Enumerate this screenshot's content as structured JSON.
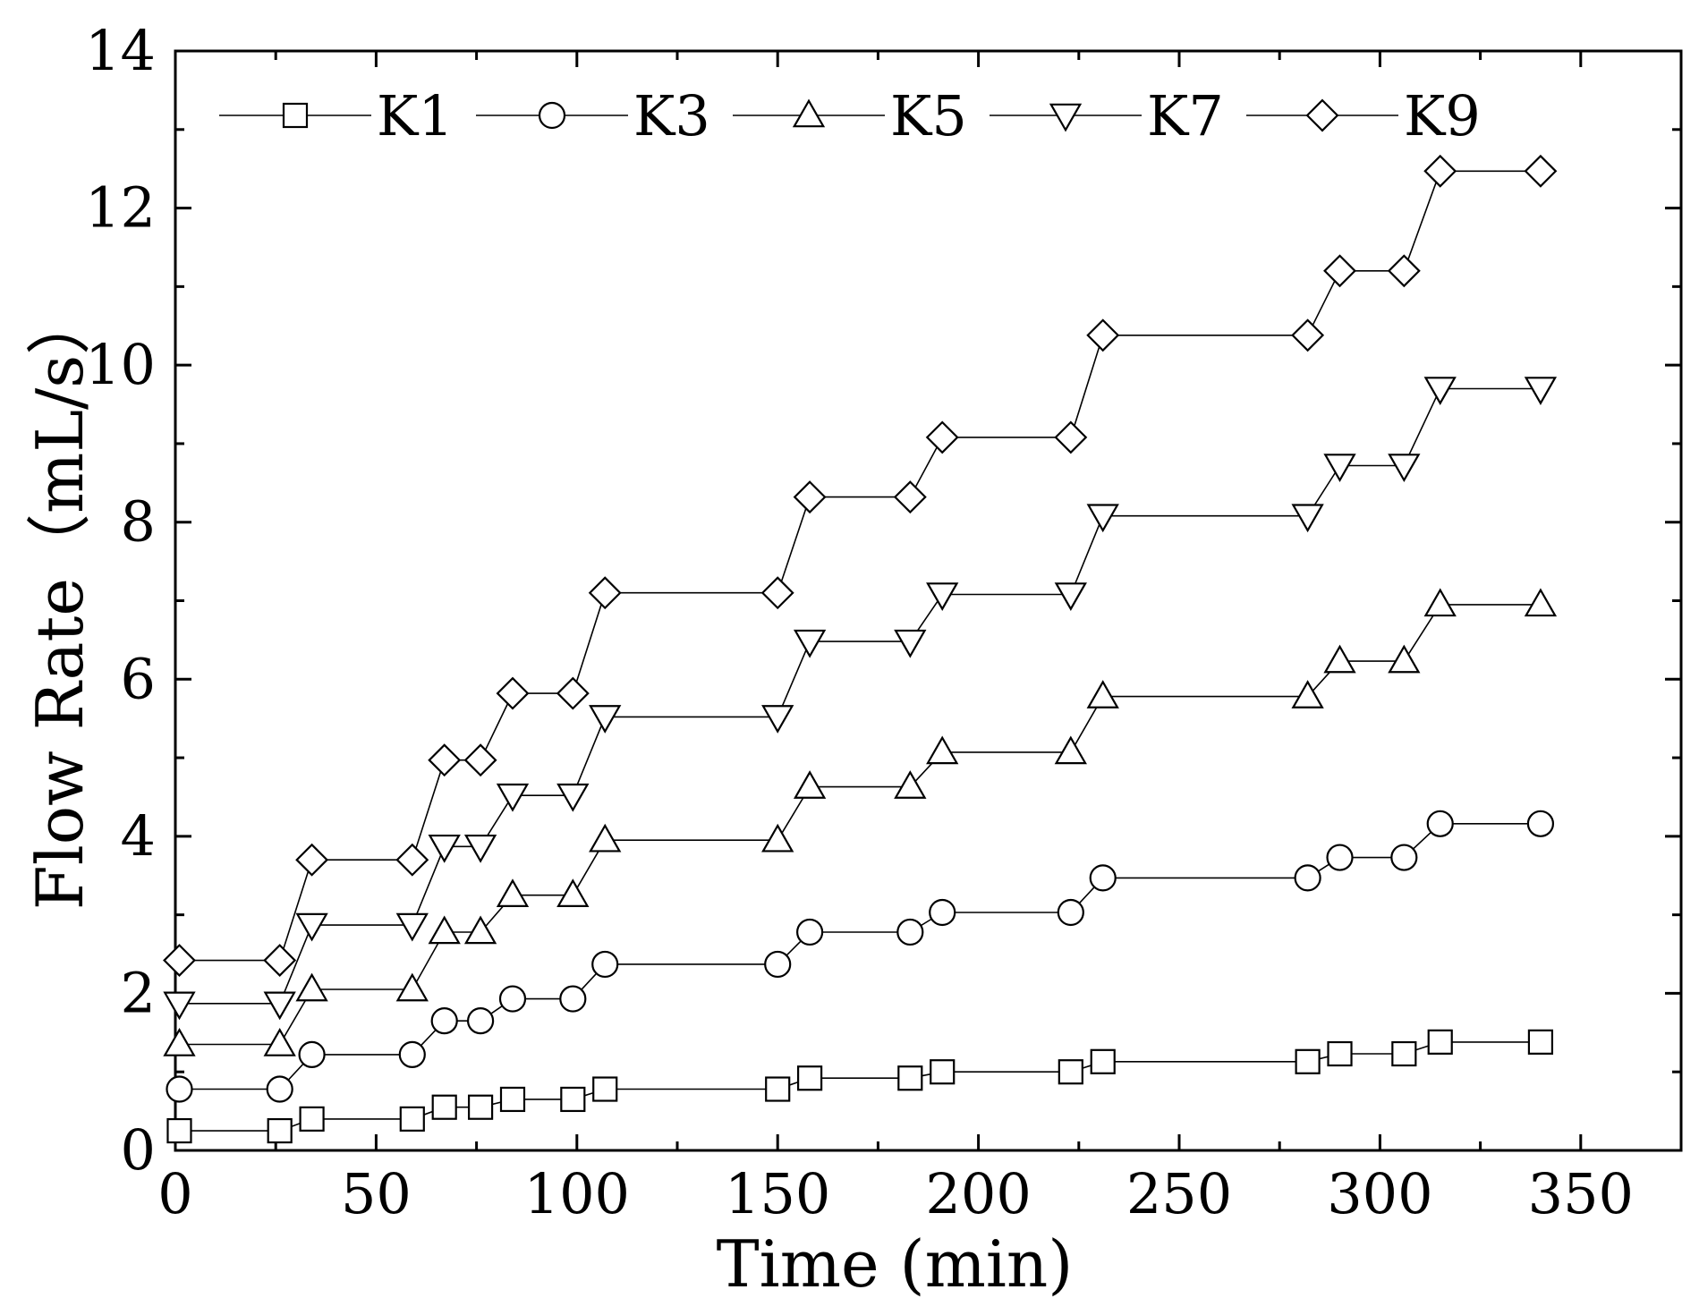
{
  "chart_data": {
    "type": "line",
    "xlabel": "Time (min)",
    "ylabel": "Flow Rate（mL/s）",
    "xlim": [
      0,
      375
    ],
    "ylim": [
      0,
      14
    ],
    "xticks": [
      0,
      50,
      100,
      150,
      200,
      250,
      300,
      350
    ],
    "yticks": [
      0,
      2,
      4,
      6,
      8,
      10,
      12,
      14
    ],
    "xtick_labels": [
      "0",
      "50",
      "100",
      "150",
      "200",
      "250",
      "300",
      "350"
    ],
    "ytick_labels": [
      "0",
      "2",
      "4",
      "6",
      "8",
      "10",
      "12",
      "14"
    ],
    "grid": false,
    "legend_position": "top",
    "x": [
      1,
      26,
      34,
      59,
      67,
      76,
      84,
      99,
      107,
      150,
      158,
      183,
      191,
      223,
      231,
      282,
      290,
      306,
      315,
      340
    ],
    "series": [
      {
        "name": "K1",
        "marker": "square",
        "values": [
          0.25,
          0.25,
          0.4,
          0.4,
          0.55,
          0.55,
          0.65,
          0.65,
          0.78,
          0.78,
          0.92,
          0.92,
          1.0,
          1.0,
          1.13,
          1.13,
          1.23,
          1.23,
          1.38,
          1.38
        ]
      },
      {
        "name": "K3",
        "marker": "circle",
        "values": [
          0.78,
          0.78,
          1.22,
          1.22,
          1.65,
          1.65,
          1.93,
          1.93,
          2.37,
          2.37,
          2.78,
          2.78,
          3.03,
          3.03,
          3.47,
          3.47,
          3.73,
          3.73,
          4.16,
          4.16
        ]
      },
      {
        "name": "K5",
        "marker": "triangle-up",
        "values": [
          1.35,
          1.35,
          2.05,
          2.05,
          2.78,
          2.78,
          3.25,
          3.25,
          3.95,
          3.95,
          4.63,
          4.63,
          5.07,
          5.07,
          5.78,
          5.78,
          6.23,
          6.23,
          6.95,
          6.95
        ]
      },
      {
        "name": "K7",
        "marker": "triangle-down",
        "values": [
          1.87,
          1.87,
          2.87,
          2.87,
          3.87,
          3.87,
          4.52,
          4.52,
          5.52,
          5.52,
          6.48,
          6.48,
          7.08,
          7.08,
          8.08,
          8.08,
          8.72,
          8.72,
          9.7,
          9.7
        ]
      },
      {
        "name": "K9",
        "marker": "diamond",
        "values": [
          2.42,
          2.42,
          3.7,
          3.7,
          4.97,
          4.97,
          5.82,
          5.82,
          7.1,
          7.1,
          8.32,
          8.32,
          9.08,
          9.08,
          10.38,
          10.38,
          11.2,
          11.2,
          12.47,
          12.47
        ]
      }
    ]
  }
}
